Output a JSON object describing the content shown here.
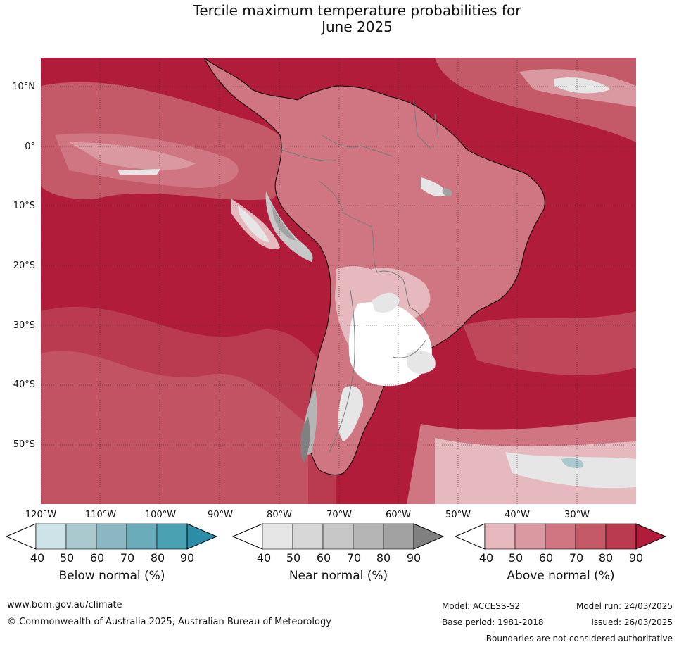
{
  "title_line1": "Tercile maximum temperature probabilities for",
  "title_line2": "June 2025",
  "lat_labels": [
    "10°N",
    "0°",
    "10°S",
    "20°S",
    "30°S",
    "40°S",
    "50°S"
  ],
  "lon_labels": [
    "120°W",
    "110°W",
    "100°W",
    "90°W",
    "80°W",
    "70°W",
    "60°W",
    "50°W",
    "40°W",
    "30°W"
  ],
  "colorbars": [
    {
      "title": "Below normal (%)",
      "ticks": [
        "40",
        "50",
        "60",
        "70",
        "80",
        "90"
      ],
      "colors": [
        "#ffffff",
        "#cde3e8",
        "#a9c9cf",
        "#8ab7c1",
        "#6aacba",
        "#4aa1b2",
        "#2b8ea6"
      ]
    },
    {
      "title": "Near normal (%)",
      "ticks": [
        "40",
        "50",
        "60",
        "70",
        "80",
        "90"
      ],
      "colors": [
        "#ffffff",
        "#e6e6e6",
        "#d7d7d7",
        "#c7c7c7",
        "#b5b5b5",
        "#a2a2a2",
        "#808080"
      ]
    },
    {
      "title": "Above normal (%)",
      "ticks": [
        "40",
        "50",
        "60",
        "70",
        "80",
        "90"
      ],
      "colors": [
        "#ffffff",
        "#e5b9bd",
        "#da99a1",
        "#cf7682",
        "#c45a68",
        "#ba3a4f",
        "#b01c3a"
      ]
    }
  ],
  "footer": {
    "url": "www.bom.gov.au/climate",
    "copyright": "© Commonwealth of Australia 2025, Australian Bureau of Meteorology",
    "model": "Model: ACCESS-S2",
    "base_period": "Base period: 1981-2018",
    "model_run": "Model run: 24/03/2025",
    "issued": "Issued: 26/03/2025",
    "boundaries": "Boundaries are not considered authoritative"
  }
}
